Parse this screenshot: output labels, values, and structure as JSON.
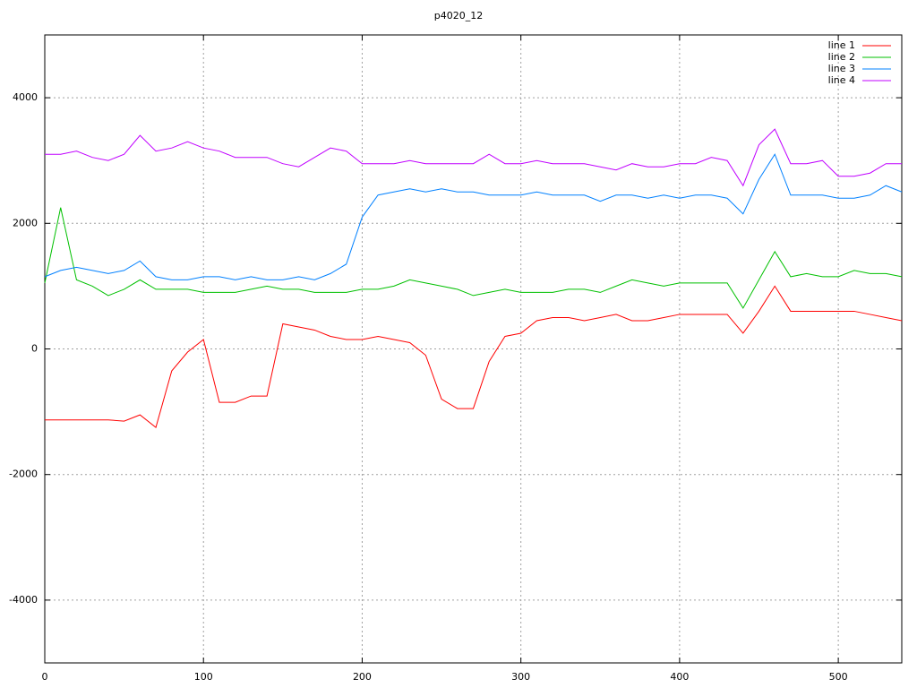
{
  "chart_data": {
    "type": "line",
    "title": "p4020_12",
    "x": [
      0,
      10,
      20,
      30,
      40,
      50,
      60,
      70,
      80,
      90,
      100,
      110,
      120,
      130,
      140,
      150,
      160,
      170,
      180,
      190,
      200,
      210,
      220,
      230,
      240,
      250,
      260,
      270,
      280,
      290,
      300,
      310,
      320,
      330,
      340,
      350,
      360,
      370,
      380,
      390,
      400,
      410,
      420,
      430,
      440,
      450,
      460,
      470,
      480,
      490,
      500,
      510,
      520,
      530,
      540
    ],
    "series": [
      {
        "name": "line 1",
        "color": "#ff0000",
        "values": [
          -1130,
          -1130,
          -1130,
          -1130,
          -1130,
          -1150,
          -1050,
          -1250,
          -350,
          -50,
          150,
          -850,
          -850,
          -750,
          -750,
          400,
          350,
          300,
          200,
          150,
          150,
          200,
          150,
          100,
          -100,
          -800,
          -950,
          -950,
          -200,
          200,
          250,
          450,
          500,
          500,
          450,
          500,
          550,
          450,
          450,
          500,
          550,
          550,
          550,
          550,
          250,
          600,
          1000,
          600,
          600,
          600,
          600,
          600,
          550,
          500,
          450
        ]
      },
      {
        "name": "line 2",
        "color": "#00c000",
        "values": [
          1050,
          2250,
          1100,
          1000,
          850,
          950,
          1100,
          950,
          950,
          950,
          900,
          900,
          900,
          950,
          1000,
          950,
          950,
          900,
          900,
          900,
          950,
          950,
          1000,
          1100,
          1050,
          1000,
          950,
          850,
          900,
          950,
          900,
          900,
          900,
          950,
          950,
          900,
          1000,
          1100,
          1050,
          1000,
          1050,
          1050,
          1050,
          1050,
          650,
          1100,
          1550,
          1150,
          1200,
          1150,
          1150,
          1250,
          1200,
          1200,
          1150
        ]
      },
      {
        "name": "line 3",
        "color": "#0080ff",
        "values": [
          1150,
          1250,
          1300,
          1250,
          1200,
          1250,
          1400,
          1150,
          1100,
          1100,
          1150,
          1150,
          1100,
          1150,
          1100,
          1100,
          1150,
          1100,
          1200,
          1350,
          2100,
          2450,
          2500,
          2550,
          2500,
          2550,
          2500,
          2500,
          2450,
          2450,
          2450,
          2500,
          2450,
          2450,
          2450,
          2350,
          2450,
          2450,
          2400,
          2450,
          2400,
          2450,
          2450,
          2400,
          2150,
          2700,
          3100,
          2450,
          2450,
          2450,
          2400,
          2400,
          2450,
          2600,
          2500
        ]
      },
      {
        "name": "line 4",
        "color": "#c000ff",
        "values": [
          3100,
          3100,
          3150,
          3050,
          3000,
          3100,
          3400,
          3150,
          3200,
          3300,
          3200,
          3150,
          3050,
          3050,
          3050,
          2950,
          2900,
          3050,
          3200,
          3150,
          2950,
          2950,
          2950,
          3000,
          2950,
          2950,
          2950,
          2950,
          3100,
          2950,
          2950,
          3000,
          2950,
          2950,
          2950,
          2900,
          2850,
          2950,
          2900,
          2900,
          2950,
          2950,
          3050,
          3000,
          2600,
          3250,
          3500,
          2950,
          2950,
          3000,
          2750,
          2750,
          2800,
          2950,
          2950
        ]
      }
    ],
    "xlim": [
      0,
      540
    ],
    "xticks": [
      0,
      100,
      200,
      300,
      400,
      500
    ],
    "ylim": [
      -5000,
      5000
    ],
    "yticks": [
      -4000,
      -2000,
      0,
      2000,
      4000
    ],
    "grid": true,
    "legend": "top right"
  }
}
